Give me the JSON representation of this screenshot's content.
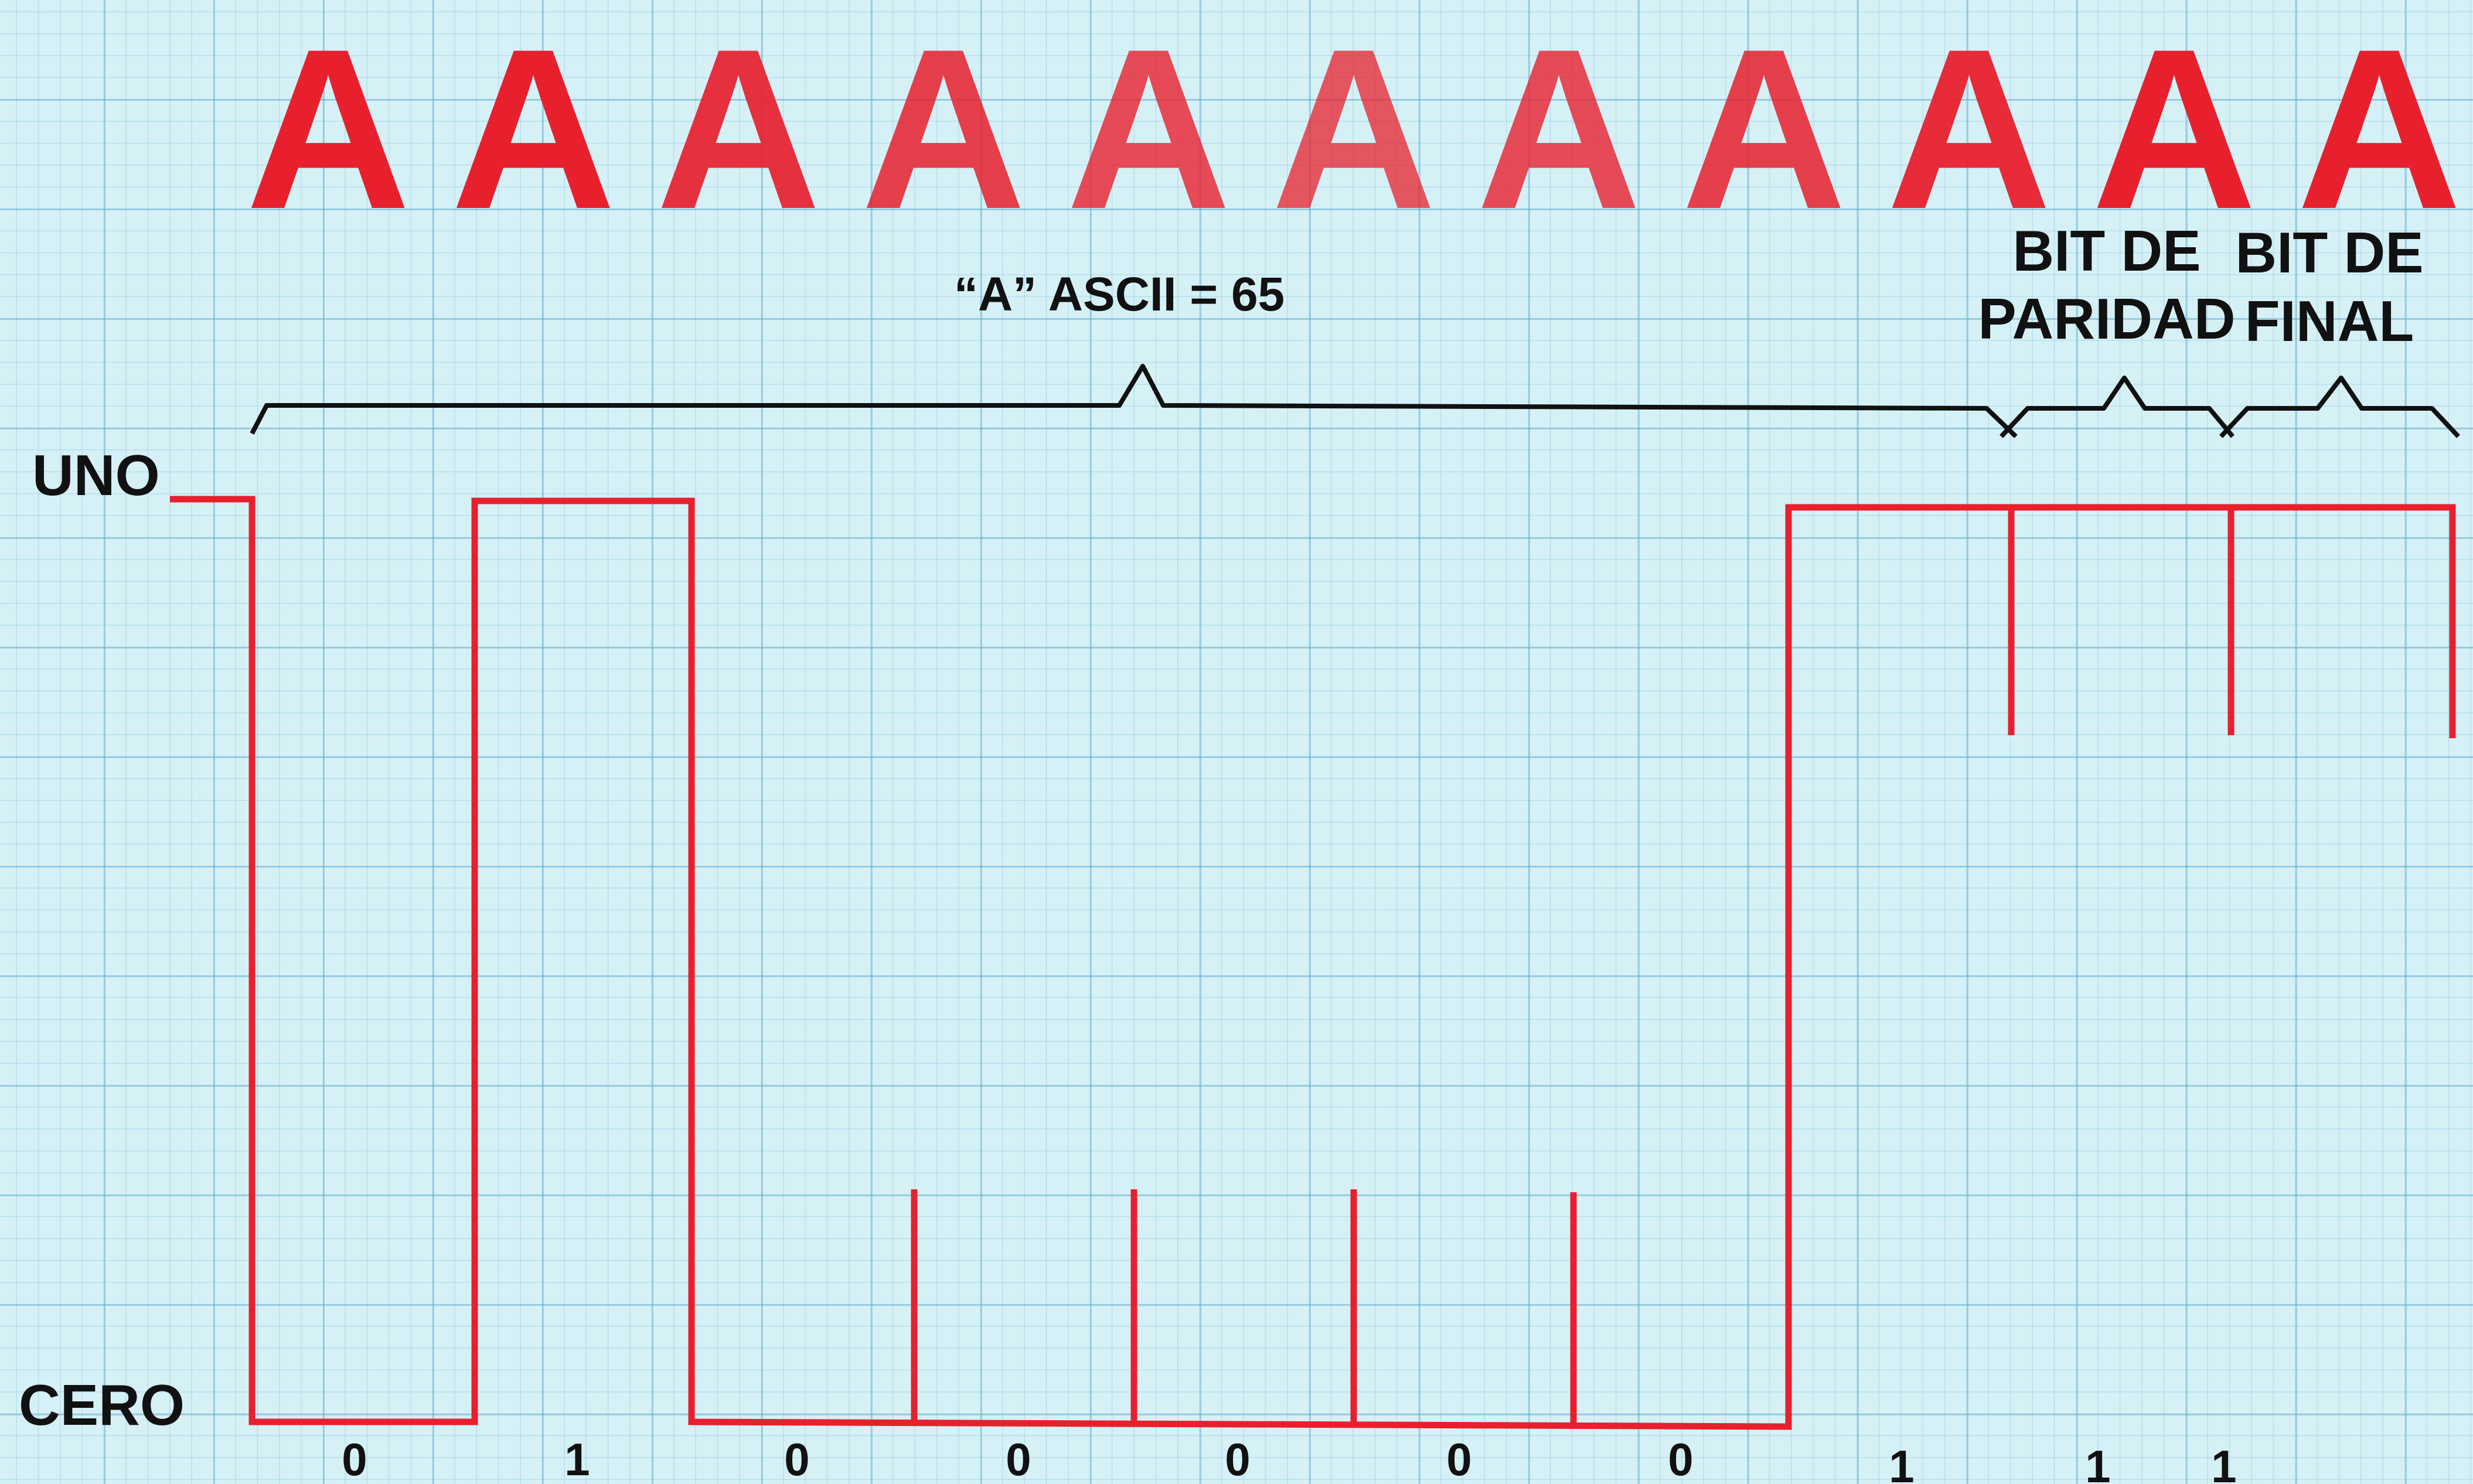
{
  "title_letters": [
    "A",
    "A",
    "A",
    "A",
    "A",
    "A",
    "A",
    "A",
    "A",
    "A",
    "A"
  ],
  "letter_color": "#e8202e",
  "signal_color": "#e8202e",
  "line_color": "#111111",
  "grid_color": "#5aaacd",
  "ascii_label": "“A” ASCII = 65",
  "parity_label": [
    "BIT DE",
    "PARIDAD"
  ],
  "stop_label": [
    "BIT DE",
    "FINAL"
  ],
  "level_high_label": "UNO",
  "level_low_label": "CERO",
  "bits": [
    "0",
    "1",
    "0",
    "0",
    "0",
    "0",
    "0",
    "1",
    "1",
    "1"
  ]
}
